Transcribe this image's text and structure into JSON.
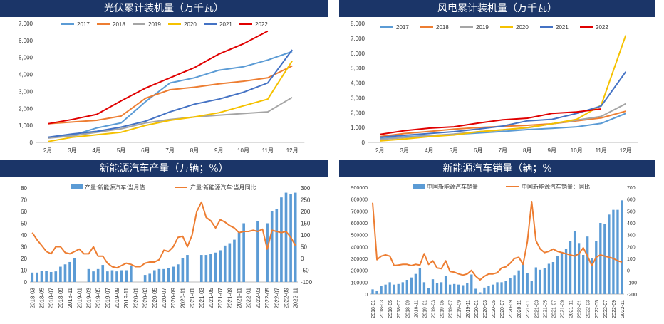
{
  "chart_data": [
    {
      "type": "line",
      "title": "光伏累计装机量（万千瓦）",
      "categories": [
        "2月",
        "3月",
        "4月",
        "5月",
        "6月",
        "7月",
        "8月",
        "9月",
        "10月",
        "11月",
        "12月"
      ],
      "ylim": [
        0,
        7000
      ],
      "yticks": [
        "0",
        "1,000",
        "2,000",
        "3,000",
        "4,000",
        "5,000",
        "6,000",
        "7,000"
      ],
      "legend_position": "top",
      "series": [
        {
          "name": "2017",
          "color": "#5b9bd5",
          "values": [
            300,
            410,
            850,
            1150,
            2400,
            3500,
            3800,
            4250,
            4450,
            4850,
            5350
          ]
        },
        {
          "name": "2018",
          "color": "#ed7d31",
          "values": [
            1100,
            1200,
            1300,
            1550,
            2600,
            3100,
            3250,
            3450,
            3600,
            3800,
            4500
          ]
        },
        {
          "name": "2019",
          "color": "#a5a5a5",
          "values": [
            250,
            380,
            600,
            800,
            1150,
            1350,
            1500,
            1600,
            1700,
            1800,
            2650
          ]
        },
        {
          "name": "2020",
          "color": "#f5c100",
          "values": [
            50,
            300,
            450,
            600,
            1000,
            1300,
            1500,
            1750,
            2150,
            2550,
            4800
          ]
        },
        {
          "name": "2021",
          "color": "#4472c4",
          "values": [
            300,
            500,
            650,
            900,
            1250,
            1800,
            2250,
            2550,
            2950,
            3500,
            5450
          ]
        },
        {
          "name": "2022",
          "color": "#e00000",
          "values": [
            1100,
            1350,
            1650,
            2450,
            3200,
            3800,
            4400,
            5200,
            5800,
            6550,
            null
          ]
        }
      ]
    },
    {
      "type": "line",
      "title": "风电累计装机量（万千瓦）",
      "categories": [
        "2月",
        "3月",
        "4月",
        "5月",
        "6月",
        "7月",
        "8月",
        "9月",
        "10月",
        "11月",
        "12月"
      ],
      "ylim": [
        0,
        8000
      ],
      "yticks": [
        "0",
        "1,000",
        "2,000",
        "3,000",
        "4,000",
        "5,000",
        "6,000",
        "7,000",
        "8,000"
      ],
      "legend_position": "top",
      "series": [
        {
          "name": "2017",
          "color": "#5b9bd5",
          "values": [
            250,
            380,
            460,
            540,
            630,
            740,
            860,
            950,
            1050,
            1280,
            1950
          ]
        },
        {
          "name": "2018",
          "color": "#ed7d31",
          "values": [
            400,
            600,
            740,
            890,
            1000,
            1080,
            1150,
            1250,
            1450,
            1650,
            2100
          ]
        },
        {
          "name": "2019",
          "color": "#a5a5a5",
          "values": [
            200,
            320,
            450,
            560,
            720,
            840,
            980,
            1250,
            1500,
            1750,
            2600
          ]
        },
        {
          "name": "2020",
          "color": "#f5c100",
          "values": [
            100,
            230,
            390,
            500,
            720,
            850,
            1000,
            1250,
            1550,
            2500,
            7200
          ]
        },
        {
          "name": "2021",
          "color": "#4472c4",
          "values": [
            350,
            480,
            600,
            720,
            900,
            1100,
            1450,
            1550,
            1950,
            2450,
            4750
          ]
        },
        {
          "name": "2022",
          "color": "#e00000",
          "values": [
            540,
            790,
            960,
            1050,
            1300,
            1520,
            1630,
            1950,
            2050,
            2250,
            null
          ]
        }
      ]
    },
    {
      "type": "bar+line",
      "title": "新能源汽车产量（万辆；%）",
      "categories": [
        "2018-03",
        "2018-04",
        "2018-05",
        "2018-06",
        "2018-07",
        "2018-08",
        "2018-09",
        "2018-10",
        "2018-11",
        "2018-12",
        "2019-01",
        "2019-02",
        "2019-03",
        "2019-04",
        "2019-05",
        "2019-06",
        "2019-07",
        "2019-08",
        "2019-09",
        "2019-10",
        "2019-11",
        "2019-12",
        "2020-01",
        "2020-02",
        "2020-03",
        "2020-04",
        "2020-05",
        "2020-06",
        "2020-07",
        "2020-08",
        "2020-09",
        "2020-10",
        "2020-11",
        "2020-12",
        "2021-01",
        "2021-02",
        "2021-03",
        "2021-04",
        "2021-05",
        "2021-06",
        "2021-07",
        "2021-08",
        "2021-09",
        "2021-10",
        "2021-11",
        "2021-12",
        "2022-01",
        "2022-02",
        "2022-03",
        "2022-04",
        "2022-05",
        "2022-06",
        "2022-07",
        "2022-08",
        "2022-09",
        "2022-10",
        "2022-11"
      ],
      "xtick_labels": [
        "2018-03",
        "2018-05",
        "2018-07",
        "2018-09",
        "2018-11",
        "2019-01",
        "2019-03",
        "2019-05",
        "2019-07",
        "2019-09",
        "2019-11",
        "2020-01",
        "2020-03",
        "2020-05",
        "2020-07",
        "2020-09",
        "2020-11",
        "2021-01",
        "2021-03",
        "2021-05",
        "2021-07",
        "2021-09",
        "2021-11",
        "2022-01",
        "2022-03",
        "2022-05",
        "2022-07",
        "2022-09",
        "2022-11"
      ],
      "ylim_left": [
        0,
        80
      ],
      "ylim_right": [
        -100,
        300
      ],
      "yticks_left": [
        "0",
        "10",
        "20",
        "30",
        "40",
        "50",
        "60",
        "70",
        "80"
      ],
      "yticks_right": [
        "-100",
        "-50",
        "0",
        "50",
        "100",
        "150",
        "200",
        "250",
        "300"
      ],
      "series": [
        {
          "name": "产量:新能源汽车:当月值",
          "type": "bar",
          "axis": "left",
          "color": "#5b9bd5",
          "values": [
            8,
            8,
            9.5,
            9.5,
            8.5,
            9,
            13,
            15,
            17,
            20,
            null,
            null,
            11,
            9,
            11,
            14.5,
            9,
            10,
            9,
            10,
            10,
            14,
            null,
            null,
            6,
            7,
            10,
            11,
            11,
            12,
            13,
            15,
            20,
            23,
            null,
            null,
            23,
            23,
            24,
            25,
            27,
            31,
            33,
            36,
            42,
            50,
            null,
            null,
            52,
            null,
            50,
            60,
            62,
            72,
            76,
            75,
            76
          ]
        },
        {
          "name": "产量:新能源汽车:当月同比",
          "type": "line",
          "axis": "right",
          "color": "#ed7d31",
          "values": [
            110,
            80,
            55,
            30,
            20,
            50,
            50,
            25,
            20,
            30,
            40,
            20,
            20,
            50,
            10,
            10,
            -20,
            -35,
            -40,
            -30,
            -20,
            -25,
            -35,
            -35,
            -20,
            -15,
            -15,
            -5,
            35,
            30,
            50,
            90,
            95,
            50,
            100,
            200,
            240,
            175,
            160,
            130,
            165,
            155,
            140,
            130,
            110,
            115,
            115,
            120,
            115,
            125,
            40,
            120,
            115,
            110,
            115,
            90,
            55
          ]
        }
      ]
    },
    {
      "type": "bar+line",
      "title": "新能源汽车销量（辆；%",
      "categories": [
        "2018-01",
        "2018-02",
        "2018-03",
        "2018-04",
        "2018-05",
        "2018-06",
        "2018-07",
        "2018-08",
        "2018-09",
        "2018-10",
        "2018-11",
        "2018-12",
        "2019-01",
        "2019-02",
        "2019-03",
        "2019-04",
        "2019-05",
        "2019-06",
        "2019-07",
        "2019-08",
        "2019-09",
        "2019-10",
        "2019-11",
        "2019-12",
        "2020-01",
        "2020-02",
        "2020-03",
        "2020-04",
        "2020-05",
        "2020-06",
        "2020-07",
        "2020-08",
        "2020-09",
        "2020-10",
        "2020-11",
        "2020-12",
        "2021-01",
        "2021-02",
        "2021-03",
        "2021-04",
        "2021-05",
        "2021-06",
        "2021-07",
        "2021-08",
        "2021-09",
        "2021-10",
        "2021-11",
        "2021-12",
        "2022-01",
        "2022-02",
        "2022-03",
        "2022-04",
        "2022-05",
        "2022-06",
        "2022-07",
        "2022-08",
        "2022-09",
        "2022-10",
        "2022-11"
      ],
      "xtick_labels": [
        "2018-01",
        "2018-03",
        "2018-05",
        "2018-07",
        "2018-09",
        "2018-11",
        "2019-01",
        "2019-03",
        "2019-05",
        "2019-07",
        "2019-09",
        "2019-11",
        "2020-01",
        "2020-03",
        "2020-05",
        "2020-07",
        "2020-09",
        "2020-11",
        "2021-01",
        "2021-03",
        "2021-05",
        "2021-07",
        "2021-09",
        "2021-11",
        "2022-01",
        "2022-03",
        "2022-05",
        "2022-07",
        "2022-09",
        "2022-11"
      ],
      "ylim_left": [
        0,
        900000
      ],
      "ylim_right": [
        -200,
        700
      ],
      "yticks_left": [
        "0",
        "100000",
        "200000",
        "300000",
        "400000",
        "500000",
        "600000",
        "700000",
        "800000",
        "900000"
      ],
      "yticks_right": [
        "-200",
        "-100",
        "0",
        "100",
        "200",
        "300",
        "400",
        "500",
        "600",
        "700"
      ],
      "series": [
        {
          "name": "中国新能源汽车销量",
          "type": "bar",
          "axis": "left",
          "color": "#5b9bd5",
          "values": [
            40000,
            30000,
            70000,
            80000,
            100000,
            80000,
            85000,
            100000,
            120000,
            140000,
            170000,
            220000,
            100000,
            50000,
            125000,
            95000,
            100000,
            150000,
            80000,
            85000,
            80000,
            75000,
            95000,
            165000,
            45000,
            15000,
            55000,
            70000,
            80000,
            100000,
            100000,
            110000,
            135000,
            160000,
            200000,
            250000,
            180000,
            110000,
            225000,
            205000,
            220000,
            255000,
            270000,
            320000,
            355000,
            380000,
            450000,
            530000,
            430000,
            330000,
            485000,
            300000,
            450000,
            600000,
            590000,
            670000,
            710000,
            710000,
            790000
          ]
        },
        {
          "name": "中国新能源汽车销量：同比",
          "type": "line",
          "axis": "right",
          "color": "#ed7d31",
          "values": [
            570,
            90,
            120,
            130,
            120,
            40,
            45,
            50,
            50,
            40,
            50,
            45,
            140,
            50,
            80,
            20,
            15,
            80,
            -10,
            -15,
            -30,
            -40,
            -30,
            0,
            -50,
            -80,
            -50,
            -30,
            -30,
            -20,
            20,
            30,
            60,
            100,
            110,
            50,
            240,
            580,
            250,
            180,
            150,
            160,
            180,
            160,
            150,
            140,
            130,
            120,
            140,
            190,
            120,
            40,
            110,
            130,
            120,
            110,
            100,
            80,
            70
          ]
        }
      ]
    }
  ]
}
